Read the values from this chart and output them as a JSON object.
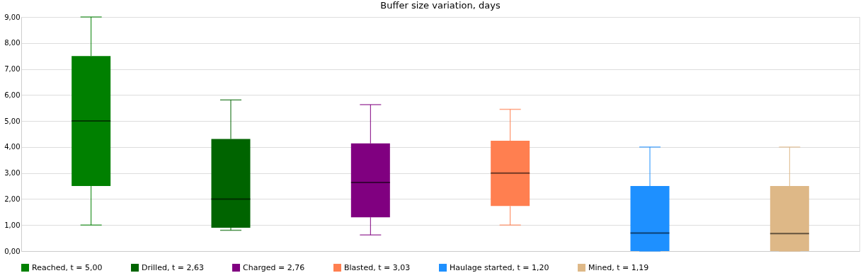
{
  "chart_data": {
    "type": "box",
    "title": "Buffer size variation, days",
    "categories": [
      null,
      null,
      null,
      null,
      null,
      null
    ],
    "series": [
      {
        "name": "Reached, t = 5,00",
        "color": "#008000",
        "boxes": [
          {
            "low": 1.0,
            "q1": 2.5,
            "median": 5.0,
            "q3": 7.5,
            "high": 9.0
          },
          null,
          null,
          null,
          null,
          null
        ]
      },
      {
        "name": "Drilled, t = 2,63",
        "color": "#006400",
        "boxes": [
          null,
          {
            "low": 0.8,
            "q1": 0.9,
            "median": 2.0,
            "q3": 4.31,
            "high": 5.81
          },
          null,
          null,
          null,
          null
        ]
      },
      {
        "name": "Charged = 2,76",
        "color": "#800080",
        "boxes": [
          null,
          null,
          {
            "low": 0.62,
            "q1": 1.3,
            "median": 2.64,
            "q3": 4.14,
            "high": 5.63
          },
          null,
          null,
          null
        ]
      },
      {
        "name": "Blasted, t = 3,03",
        "color": "#ff7f50",
        "boxes": [
          null,
          null,
          null,
          {
            "low": 1.0,
            "q1": 1.73,
            "median": 3.0,
            "q3": 4.24,
            "high": 5.45
          },
          null,
          null
        ]
      },
      {
        "name": "Haulage started, t = 1,20",
        "color": "#1e90ff",
        "boxes": [
          null,
          null,
          null,
          null,
          {
            "low": 0.0,
            "q1": 0.0,
            "median": 0.69,
            "q3": 2.5,
            "high": 4.0
          },
          null
        ]
      },
      {
        "name": "Mined, t = 1,19",
        "color": "#deb887",
        "boxes": [
          null,
          null,
          null,
          null,
          null,
          {
            "low": 0.0,
            "q1": 0.0,
            "median": 0.67,
            "q3": 2.5,
            "high": 4.0
          }
        ]
      }
    ],
    "ylim": [
      0,
      9
    ],
    "yticks": [
      {
        "value": 0,
        "label": "0,00"
      },
      {
        "value": 1,
        "label": "1,00"
      },
      {
        "value": 2,
        "label": "2,00"
      },
      {
        "value": 3,
        "label": "3,00"
      },
      {
        "value": 4,
        "label": "4,00"
      },
      {
        "value": 5,
        "label": "5,00"
      },
      {
        "value": 6,
        "label": "6,00"
      },
      {
        "value": 7,
        "label": "7,00"
      },
      {
        "value": 8,
        "label": "8,00"
      },
      {
        "value": 9,
        "label": "9,00"
      }
    ],
    "grid": "y",
    "legend": "bottom",
    "tick_labels": "y"
  }
}
